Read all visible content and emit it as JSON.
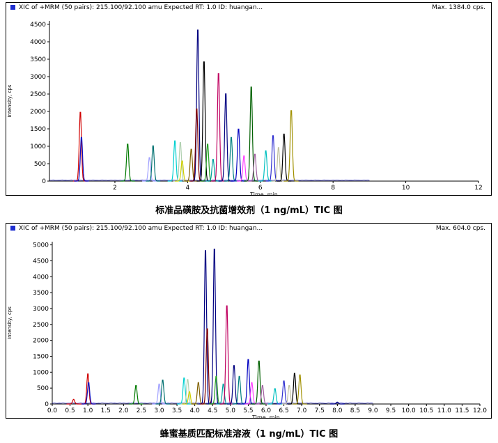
{
  "chart_data": [
    {
      "type": "line",
      "header_left": "XIC of +MRM (50 pairs): 215.100/92.100 amu Expected RT: 1.0 ID: huangan...",
      "header_right": "Max. 1384.0 cps.",
      "ylabel": "Intensity, cps",
      "xlabel": "Time, min",
      "caption": "标准品磺胺及抗菌增效剂（1 ng/mL）TIC 图",
      "xlim": [
        0.2,
        12.0
      ],
      "ylim": [
        0,
        4600
      ],
      "x_ticks": [
        2,
        4,
        6,
        8,
        10,
        12
      ],
      "x_tick_labels": [
        "2",
        "4",
        "6",
        "8",
        "10",
        "12"
      ],
      "y_ticks": [
        0,
        500,
        1000,
        1500,
        2000,
        2500,
        3000,
        3500,
        4000,
        4500
      ],
      "y_tick_labels": [
        "0",
        "500",
        "1000",
        "1500",
        "2000",
        "2500",
        "3000",
        "3500",
        "4000",
        "4500"
      ],
      "peaks": [
        {
          "rt": 1.05,
          "h": 2050,
          "color": "#d00000"
        },
        {
          "rt": 1.08,
          "h": 1300,
          "color": "#1010c0"
        },
        {
          "rt": 2.35,
          "h": 1100,
          "color": "#007a00"
        },
        {
          "rt": 2.95,
          "h": 700,
          "color": "#a0a0ff"
        },
        {
          "rt": 3.05,
          "h": 1050,
          "color": "#007070"
        },
        {
          "rt": 3.65,
          "h": 1200,
          "color": "#00d0d0"
        },
        {
          "rt": 3.8,
          "h": 1150,
          "color": "#b0d0b0"
        },
        {
          "rt": 3.85,
          "h": 600,
          "color": "#d0d000"
        },
        {
          "rt": 4.1,
          "h": 950,
          "color": "#806000"
        },
        {
          "rt": 4.28,
          "h": 4500,
          "color": "#000080"
        },
        {
          "rt": 4.25,
          "h": 2150,
          "color": "#800000"
        },
        {
          "rt": 4.45,
          "h": 3550,
          "color": "#000000"
        },
        {
          "rt": 4.55,
          "h": 1100,
          "color": "#20a020"
        },
        {
          "rt": 4.7,
          "h": 650,
          "color": "#00a0a0"
        },
        {
          "rt": 4.85,
          "h": 3200,
          "color": "#c00060"
        },
        {
          "rt": 5.05,
          "h": 2600,
          "color": "#000080"
        },
        {
          "rt": 5.2,
          "h": 1300,
          "color": "#008080"
        },
        {
          "rt": 5.4,
          "h": 1550,
          "color": "#0000c0"
        },
        {
          "rt": 5.55,
          "h": 750,
          "color": "#ff40ff"
        },
        {
          "rt": 5.75,
          "h": 2800,
          "color": "#006000"
        },
        {
          "rt": 5.85,
          "h": 800,
          "color": "#a060a0"
        },
        {
          "rt": 6.15,
          "h": 900,
          "color": "#00c0c0"
        },
        {
          "rt": 6.35,
          "h": 1350,
          "color": "#3030d0"
        },
        {
          "rt": 6.5,
          "h": 1000,
          "color": "#c0c0a0"
        },
        {
          "rt": 6.65,
          "h": 1400,
          "color": "#000000"
        },
        {
          "rt": 6.85,
          "h": 2100,
          "color": "#a09000"
        }
      ]
    },
    {
      "type": "line",
      "header_left": "XIC of +MRM (50 pairs): 215.100/92.100 amu Expected RT: 1.0 ID: huangan...",
      "header_right": "Max. 604.0 cps.",
      "ylabel": "Intensity, cps",
      "xlabel": "Time, min",
      "caption": "蜂蜜基质匹配标准溶液（1 ng/mL）TIC 图",
      "xlim": [
        0.0,
        12.0
      ],
      "ylim": [
        0,
        5100
      ],
      "x_ticks": [
        0,
        0.5,
        1,
        1.5,
        2,
        2.5,
        3,
        3.5,
        4,
        4.5,
        5,
        5.5,
        6,
        6.5,
        7,
        7.5,
        8,
        8.5,
        9,
        9.5,
        10,
        10.5,
        11,
        11.5,
        12
      ],
      "x_tick_labels": [
        "0.0",
        "0.5",
        "1.0",
        "1.5",
        "2.0",
        "2.5",
        "3.0",
        "3.5",
        "4.0",
        "4.5",
        "5.0",
        "5.5",
        "6.0",
        "6.5",
        "7.0",
        "7.5",
        "8.0",
        "8.5",
        "9.0",
        "9.5",
        "10.0",
        "10.5",
        "11.0",
        "11.5",
        "12.0"
      ],
      "y_ticks": [
        0,
        500,
        1000,
        1500,
        2000,
        2500,
        3000,
        3500,
        4000,
        4500,
        5000
      ],
      "y_tick_labels": [
        "0",
        "500",
        "1000",
        "1500",
        "2000",
        "2500",
        "3000",
        "3500",
        "4000",
        "4500",
        "5000"
      ],
      "peaks": [
        {
          "rt": 0.6,
          "h": 150,
          "color": "#d00000"
        },
        {
          "rt": 1.0,
          "h": 980,
          "color": "#d00000"
        },
        {
          "rt": 1.02,
          "h": 700,
          "color": "#1010c0"
        },
        {
          "rt": 2.35,
          "h": 600,
          "color": "#007a00"
        },
        {
          "rt": 3.0,
          "h": 650,
          "color": "#a0a0ff"
        },
        {
          "rt": 3.1,
          "h": 780,
          "color": "#007070"
        },
        {
          "rt": 3.7,
          "h": 850,
          "color": "#00d0d0"
        },
        {
          "rt": 3.8,
          "h": 800,
          "color": "#b0d0b0"
        },
        {
          "rt": 3.85,
          "h": 400,
          "color": "#d0d000"
        },
        {
          "rt": 4.1,
          "h": 700,
          "color": "#806000"
        },
        {
          "rt": 4.3,
          "h": 5000,
          "color": "#000080"
        },
        {
          "rt": 4.35,
          "h": 2450,
          "color": "#800000"
        },
        {
          "rt": 4.55,
          "h": 5050,
          "color": "#000080"
        },
        {
          "rt": 4.6,
          "h": 900,
          "color": "#20a020"
        },
        {
          "rt": 4.8,
          "h": 650,
          "color": "#00a0a0"
        },
        {
          "rt": 4.9,
          "h": 3200,
          "color": "#c00060"
        },
        {
          "rt": 5.1,
          "h": 1250,
          "color": "#000080"
        },
        {
          "rt": 5.25,
          "h": 900,
          "color": "#008080"
        },
        {
          "rt": 5.5,
          "h": 1450,
          "color": "#0000c0"
        },
        {
          "rt": 5.6,
          "h": 700,
          "color": "#ff40ff"
        },
        {
          "rt": 5.8,
          "h": 1400,
          "color": "#006000"
        },
        {
          "rt": 5.9,
          "h": 600,
          "color": "#a060a0"
        },
        {
          "rt": 6.25,
          "h": 500,
          "color": "#00c0c0"
        },
        {
          "rt": 6.5,
          "h": 750,
          "color": "#3030d0"
        },
        {
          "rt": 6.65,
          "h": 600,
          "color": "#c0c0a0"
        },
        {
          "rt": 6.8,
          "h": 1000,
          "color": "#000000"
        },
        {
          "rt": 6.95,
          "h": 950,
          "color": "#a09000"
        },
        {
          "rt": 8.0,
          "h": 60,
          "color": "#000080"
        }
      ]
    }
  ]
}
